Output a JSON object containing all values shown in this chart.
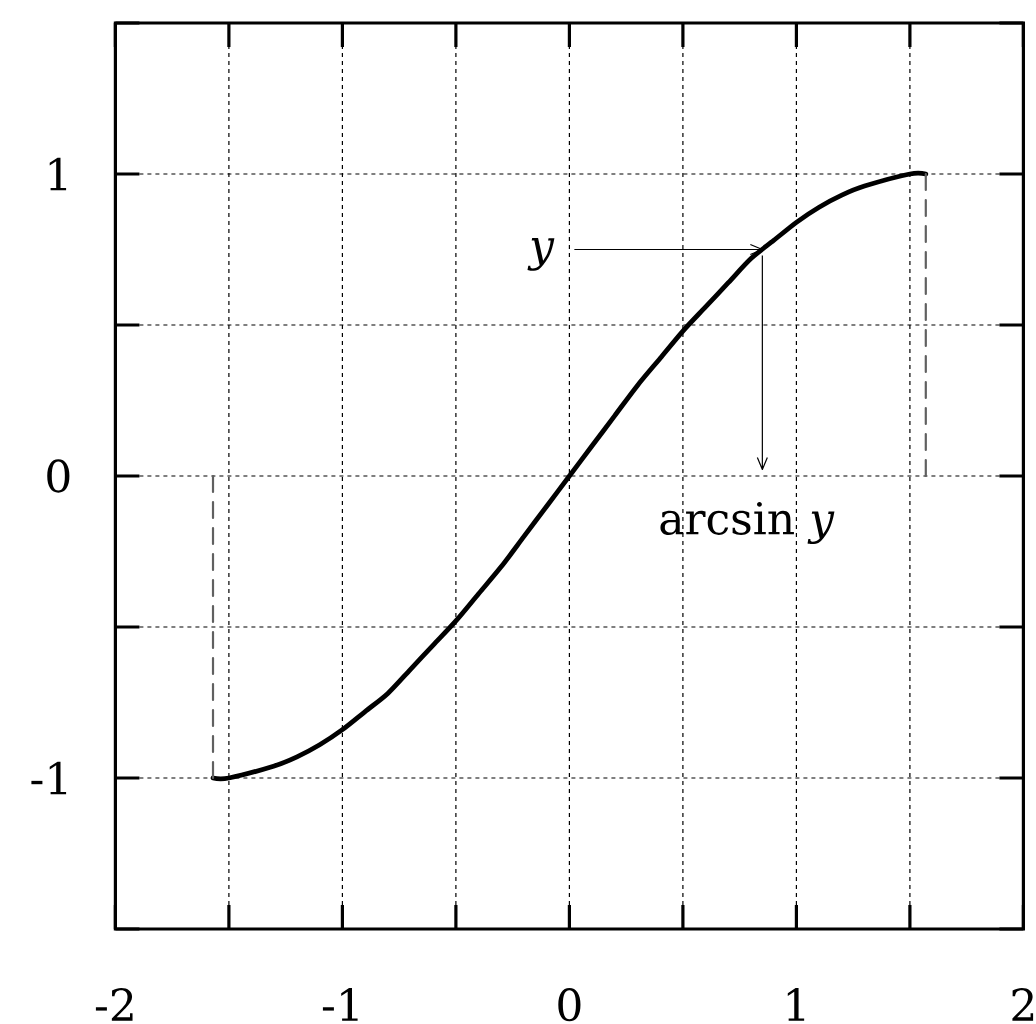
{
  "chart_data": {
    "type": "line",
    "xlim": [
      -2,
      2
    ],
    "ylim": [
      -1.5,
      1.5
    ],
    "xticks": [
      -2,
      {
        "value": -1.5,
        "label": null
      },
      -1,
      {
        "value": -0.5,
        "label": null
      },
      0,
      {
        "value": 0.5,
        "label": null
      },
      1,
      {
        "value": 1.5,
        "label": null
      },
      2
    ],
    "yticks": [
      {
        "value": -1.5,
        "label": null
      },
      -1,
      {
        "value": -0.5,
        "label": null
      },
      0,
      {
        "value": 0.5,
        "label": null
      },
      1,
      {
        "value": 1.5,
        "label": null
      }
    ],
    "grid": true,
    "series": [
      {
        "color": "#000000",
        "line_style": "solid",
        "x": [
          -1.57,
          -1.5,
          -1.3,
          -1.2,
          -1.1,
          -1.0,
          -0.9,
          -0.8,
          -0.7,
          -0.6,
          -0.5,
          -0.4,
          -0.3,
          -0.2,
          -0.1,
          0,
          0.1,
          0.2,
          0.3,
          0.4,
          0.5,
          0.6,
          0.7,
          0.8,
          0.9,
          1.0,
          1.1,
          1.2,
          1.3,
          1.5,
          1.57
        ],
        "values": [
          -1.0,
          -1.0,
          -0.96,
          -0.93,
          -0.89,
          -0.84,
          -0.78,
          -0.72,
          -0.64,
          -0.56,
          -0.48,
          -0.39,
          -0.3,
          -0.2,
          -0.1,
          0,
          0.1,
          0.2,
          0.3,
          0.39,
          0.48,
          0.56,
          0.64,
          0.72,
          0.78,
          0.84,
          0.89,
          0.93,
          0.96,
          1.0,
          1.0
        ]
      },
      {
        "color": "#606060",
        "line_style": "dashed",
        "x": [
          -1.57,
          -1.57
        ],
        "values": [
          -1,
          0
        ]
      },
      {
        "color": "#606060",
        "line_style": "dashed",
        "x": [
          1.57,
          1.57
        ],
        "values": [
          0,
          1
        ]
      }
    ],
    "annotations": [
      "y",
      {
        "text": "arcsin *y*",
        "x": 0.85,
        "y": 0.75
      }
    ]
  }
}
